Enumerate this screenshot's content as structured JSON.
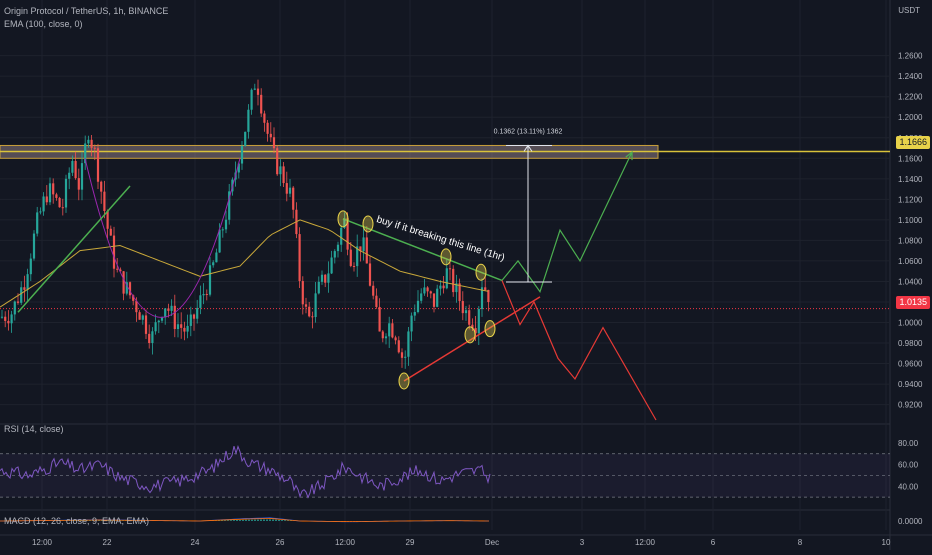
{
  "header": {
    "symbol_line": "Origin Protocol / TetherUS, 1h, BINANCE",
    "ema_line": "EMA (100, close, 0)",
    "quote_unit": "USDT"
  },
  "rsi_panel": {
    "label": "RSI (14, close)",
    "ticks": [
      "80.00",
      "60.00",
      "40.00"
    ]
  },
  "macd_panel": {
    "label": "MACD (12, 26, close, 9, EMA, EMA)",
    "ticks": [
      "0.0000"
    ]
  },
  "price_badges": {
    "resistance": "1.1666",
    "last": "1.0135"
  },
  "colors": {
    "background": "#131722",
    "up": "#26a69a",
    "down": "#ef5350",
    "ema": "#c9a83a",
    "resistance_zone": "#8d7a7f",
    "resistance_line": "#d9c23a",
    "rsi_line": "#7e57c2",
    "bull_path": "#4caf50",
    "bear_path": "#e53935",
    "last_price": "#f23645"
  },
  "annotations": {
    "breakout_text": "buy if it breaking this line (1hr)",
    "measure_text": "0.1362 (13.11%) 1362"
  },
  "chart_data": {
    "type": "candlestick",
    "title": "Origin Protocol / TetherUS, 1h, BINANCE",
    "x_tick_labels": [
      "12:00",
      "22",
      "24",
      "26",
      "12:00",
      "29",
      "Dec",
      "3",
      "12:00",
      "6",
      "8",
      "10"
    ],
    "y_tick_labels": [
      "1.2600",
      "1.2400",
      "1.2200",
      "1.2000",
      "1.1800",
      "1.1600",
      "1.1400",
      "1.1200",
      "1.1000",
      "1.0800",
      "1.0600",
      "1.0400",
      "1.0200",
      "1.0000",
      "0.9800",
      "0.9600",
      "0.9400",
      "0.9200"
    ],
    "ylim": [
      0.905,
      1.285
    ],
    "grid": true,
    "last_price": 1.0135,
    "resistance_level": 1.1666,
    "resistance_zone": [
      1.16,
      1.1725
    ],
    "price_path_keypoints": [
      [
        0,
        1.005
      ],
      [
        12,
        1.01
      ],
      [
        24,
        1.04
      ],
      [
        38,
        1.1
      ],
      [
        48,
        1.13
      ],
      [
        62,
        1.11
      ],
      [
        72,
        1.16
      ],
      [
        80,
        1.13
      ],
      [
        88,
        1.19
      ],
      [
        96,
        1.16
      ],
      [
        106,
        1.1
      ],
      [
        116,
        1.05
      ],
      [
        128,
        1.03
      ],
      [
        140,
        1.01
      ],
      [
        152,
        0.985
      ],
      [
        164,
        1.02
      ],
      [
        176,
        1.0
      ],
      [
        188,
        0.99
      ],
      [
        200,
        1.02
      ],
      [
        212,
        1.05
      ],
      [
        222,
        1.09
      ],
      [
        232,
        1.13
      ],
      [
        240,
        1.17
      ],
      [
        248,
        1.2
      ],
      [
        256,
        1.24
      ],
      [
        260,
        1.22
      ],
      [
        266,
        1.19
      ],
      [
        274,
        1.16
      ],
      [
        284,
        1.14
      ],
      [
        292,
        1.12
      ],
      [
        300,
        1.04
      ],
      [
        308,
        1.0
      ],
      [
        318,
        1.03
      ],
      [
        328,
        1.05
      ],
      [
        338,
        1.08
      ],
      [
        344,
        1.1
      ],
      [
        352,
        1.06
      ],
      [
        362,
        1.08
      ],
      [
        372,
        1.03
      ],
      [
        380,
        0.985
      ],
      [
        388,
        1.0
      ],
      [
        396,
        0.99
      ],
      [
        404,
        0.96
      ],
      [
        412,
        1.01
      ],
      [
        422,
        1.03
      ],
      [
        434,
        1.02
      ],
      [
        446,
        1.05
      ],
      [
        456,
        1.03
      ],
      [
        466,
        1.01
      ],
      [
        476,
        1.0
      ],
      [
        482,
        1.04
      ],
      [
        490,
        1.025
      ]
    ],
    "ema_keypoints": [
      [
        0,
        1.015
      ],
      [
        40,
        1.04
      ],
      [
        80,
        1.07
      ],
      [
        120,
        1.075
      ],
      [
        160,
        1.06
      ],
      [
        200,
        1.045
      ],
      [
        240,
        1.055
      ],
      [
        270,
        1.085
      ],
      [
        300,
        1.1
      ],
      [
        330,
        1.09
      ],
      [
        360,
        1.07
      ],
      [
        400,
        1.05
      ],
      [
        440,
        1.04
      ],
      [
        490,
        1.03
      ]
    ],
    "rsi_ylim": [
      20,
      90
    ],
    "rsi_bands": [
      70,
      50,
      30
    ],
    "rsi_keypoints": [
      [
        0,
        55
      ],
      [
        30,
        50
      ],
      [
        60,
        62
      ],
      [
        80,
        55
      ],
      [
        100,
        60
      ],
      [
        120,
        48
      ],
      [
        150,
        40
      ],
      [
        180,
        45
      ],
      [
        210,
        55
      ],
      [
        235,
        75
      ],
      [
        250,
        62
      ],
      [
        270,
        55
      ],
      [
        290,
        45
      ],
      [
        300,
        30
      ],
      [
        320,
        40
      ],
      [
        345,
        58
      ],
      [
        360,
        50
      ],
      [
        380,
        40
      ],
      [
        400,
        48
      ],
      [
        420,
        55
      ],
      [
        440,
        45
      ],
      [
        460,
        52
      ],
      [
        480,
        55
      ],
      [
        490,
        47
      ]
    ],
    "macd_keypoints": [
      [
        0,
        0.0
      ],
      [
        100,
        0.003
      ],
      [
        200,
        0.0
      ],
      [
        245,
        0.006
      ],
      [
        270,
        0.008
      ],
      [
        300,
        0.0
      ],
      [
        350,
        -0.002
      ],
      [
        400,
        0.0
      ],
      [
        450,
        0.001
      ],
      [
        490,
        0.0
      ]
    ],
    "trendlines": {
      "green_breakout": [
        [
          343,
          1.101
        ],
        [
          502,
          1.041
        ]
      ],
      "red_support": [
        [
          404,
          0.943
        ],
        [
          540,
          1.025
        ]
      ],
      "green_left": [
        [
          18,
          1.01
        ],
        [
          130,
          1.133
        ]
      ]
    },
    "projections": {
      "bull": [
        [
          502,
          1.041
        ],
        [
          518,
          1.06
        ],
        [
          540,
          1.03
        ],
        [
          560,
          1.09
        ],
        [
          580,
          1.06
        ],
        [
          632,
          1.166
        ]
      ],
      "bear": [
        [
          502,
          1.041
        ],
        [
          520,
          0.998
        ],
        [
          534,
          1.02
        ],
        [
          558,
          0.965
        ],
        [
          575,
          0.945
        ],
        [
          603,
          0.995
        ],
        [
          656,
          0.905
        ]
      ]
    },
    "pivot_markers": [
      [
        343,
        1.101
      ],
      [
        368,
        1.096
      ],
      [
        446,
        1.064
      ],
      [
        481,
        1.049
      ],
      [
        404,
        0.943
      ],
      [
        470,
        0.988
      ],
      [
        490,
        0.994
      ]
    ]
  }
}
